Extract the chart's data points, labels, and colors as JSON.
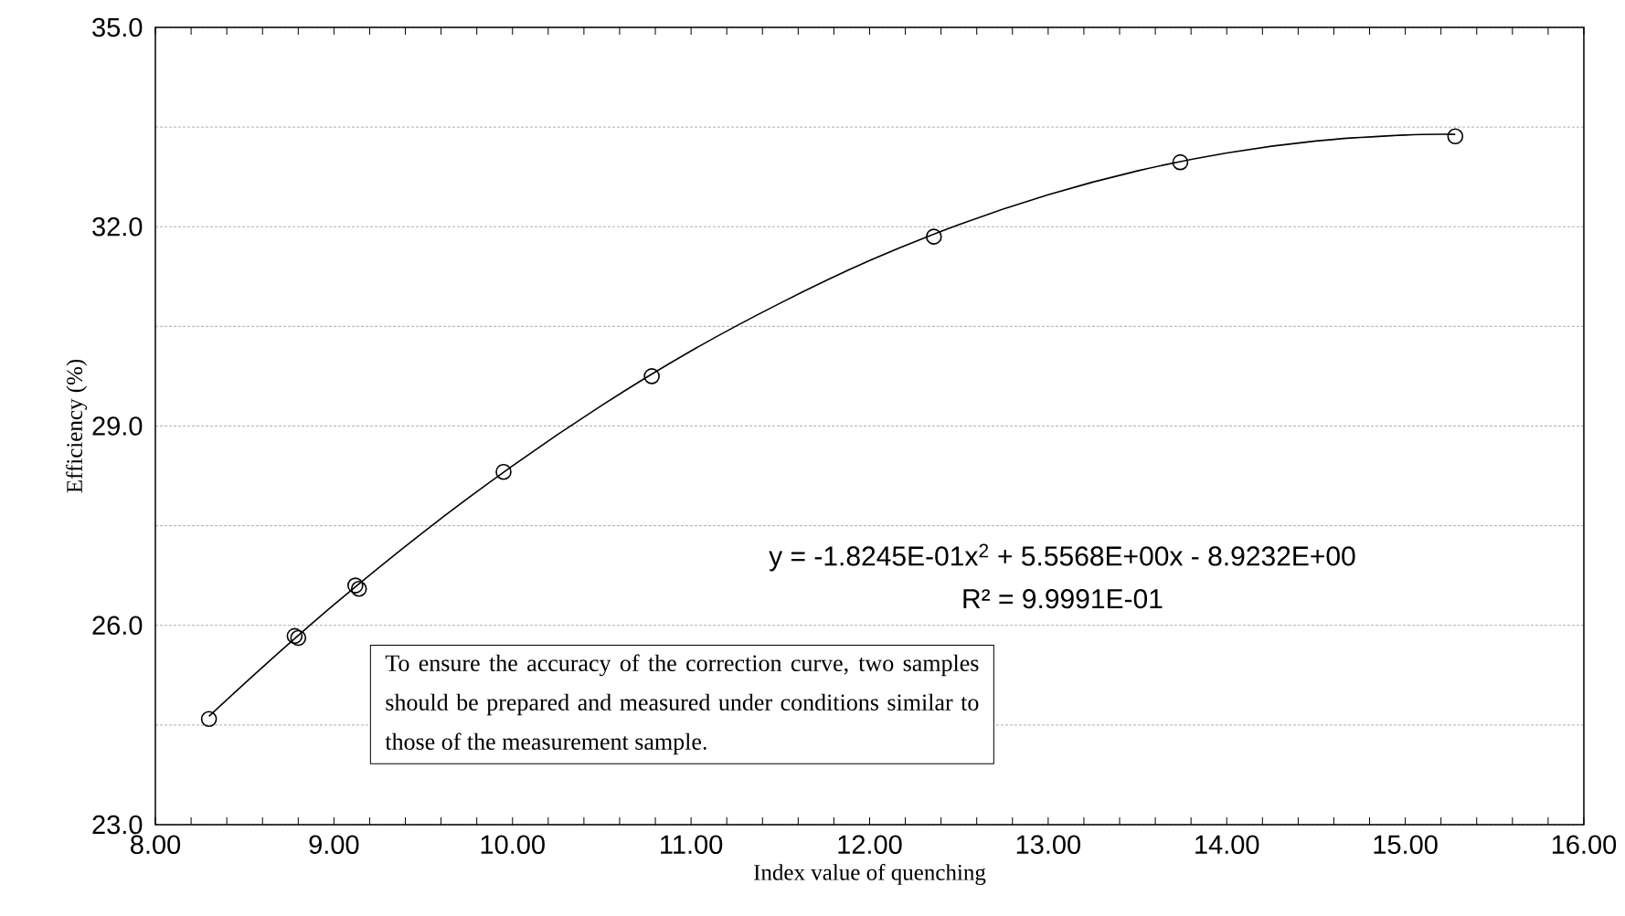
{
  "chart_data": {
    "type": "scatter",
    "xlabel": "Index value of quenching",
    "ylabel": "Efficiency (%)",
    "xlim": [
      8,
      16
    ],
    "ylim": [
      23,
      35
    ],
    "xticks": [
      {
        "value": 8,
        "label": "8.00"
      },
      {
        "value": 8.2,
        "label": null
      },
      {
        "value": 8.4,
        "label": null
      },
      {
        "value": 8.6,
        "label": null
      },
      {
        "value": 8.8,
        "label": null
      },
      {
        "value": 9,
        "label": "9.00"
      },
      {
        "value": 9.2,
        "label": null
      },
      {
        "value": 9.4,
        "label": null
      },
      {
        "value": 9.6,
        "label": null
      },
      {
        "value": 9.8,
        "label": null
      },
      {
        "value": 10,
        "label": "10.00"
      },
      {
        "value": 10.2,
        "label": null
      },
      {
        "value": 10.4,
        "label": null
      },
      {
        "value": 10.6,
        "label": null
      },
      {
        "value": 10.8,
        "label": null
      },
      {
        "value": 11,
        "label": "11.00"
      },
      {
        "value": 11.2,
        "label": null
      },
      {
        "value": 11.4,
        "label": null
      },
      {
        "value": 11.6,
        "label": null
      },
      {
        "value": 11.8,
        "label": null
      },
      {
        "value": 12,
        "label": "12.00"
      },
      {
        "value": 12.2,
        "label": null
      },
      {
        "value": 12.4,
        "label": null
      },
      {
        "value": 12.6,
        "label": null
      },
      {
        "value": 12.8,
        "label": null
      },
      {
        "value": 13,
        "label": "13.00"
      },
      {
        "value": 13.2,
        "label": null
      },
      {
        "value": 13.4,
        "label": null
      },
      {
        "value": 13.6,
        "label": null
      },
      {
        "value": 13.8,
        "label": null
      },
      {
        "value": 14,
        "label": "14.00"
      },
      {
        "value": 14.2,
        "label": null
      },
      {
        "value": 14.4,
        "label": null
      },
      {
        "value": 14.6,
        "label": null
      },
      {
        "value": 14.8,
        "label": null
      },
      {
        "value": 15,
        "label": "15.00"
      },
      {
        "value": 15.2,
        "label": null
      },
      {
        "value": 15.4,
        "label": null
      },
      {
        "value": 15.6,
        "label": null
      },
      {
        "value": 15.8,
        "label": null
      },
      {
        "value": 16,
        "label": "16.00"
      }
    ],
    "yticks": [
      {
        "value": 23,
        "label": "23.0"
      },
      {
        "value": 24.5,
        "label": null
      },
      {
        "value": 26,
        "label": "26.0"
      },
      {
        "value": 27.5,
        "label": null
      },
      {
        "value": 29,
        "label": "29.0"
      },
      {
        "value": 30.5,
        "label": null
      },
      {
        "value": 32,
        "label": "32.0"
      },
      {
        "value": 33.5,
        "label": null
      },
      {
        "value": 35,
        "label": "35.0"
      }
    ],
    "grid": "y",
    "series": [
      {
        "marker": "circle",
        "color": "#000000",
        "x": [
          8.3,
          8.78,
          8.8,
          9.12,
          9.14,
          9.95,
          10.78,
          12.36,
          13.74,
          15.28
        ],
        "values": [
          24.59,
          25.84,
          25.81,
          26.6,
          26.55,
          28.31,
          29.75,
          31.85,
          32.97,
          33.36
        ]
      },
      {
        "type": "line",
        "line_style": "solid",
        "color": "#000000",
        "x": [
          8.3,
          8.6,
          9,
          9.5,
          10,
          10.5,
          11,
          11.5,
          12,
          12.5,
          13,
          13.5,
          14,
          14.5,
          15,
          15.28
        ],
        "values": [
          24.63,
          25.37,
          26.31,
          27.4,
          28.4,
          29.31,
          30.13,
          30.85,
          31.49,
          32.03,
          32.48,
          32.84,
          33.11,
          33.29,
          33.38,
          33.39
        ]
      }
    ],
    "annotations": [
      "y = -1.8245E-01x$^{2}$ + 5.5568E+00x - 8.9232E+00",
      "R² = 9.9991E-01",
      "To ensure the accuracy of the correction curve, two samples should be prepared and measured under conditions similar to those of the measurement sample."
    ]
  }
}
